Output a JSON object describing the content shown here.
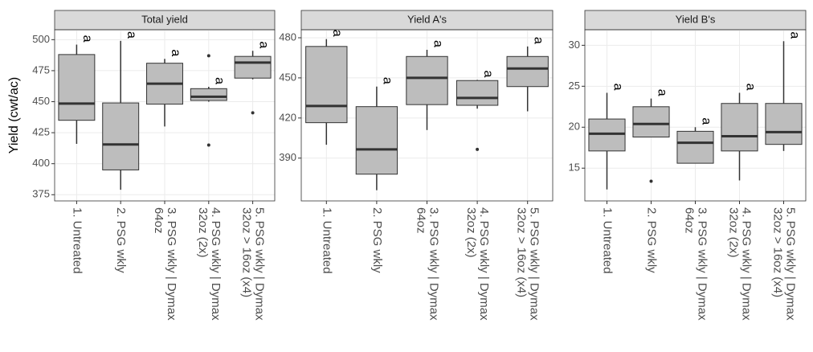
{
  "chart_data": [
    {
      "type": "box",
      "title": "Total yield",
      "ylabel": "Yield (cwt/ac)",
      "categories": [
        [
          "1. Untreated"
        ],
        [
          "2. PSG wkly"
        ],
        [
          "3. PSG wkly | Dymax",
          "64oz"
        ],
        [
          "4. PSG wkly | Dymax",
          "32oz (2x)"
        ],
        [
          "5. PSG wkly | Dymax",
          "32oz > 16oz (x4)"
        ]
      ],
      "boxes": [
        {
          "min": 416,
          "q1": 435,
          "median": 448.5,
          "q3": 488,
          "max": 496,
          "outliers": []
        },
        {
          "min": 379,
          "q1": 395,
          "median": 415.5,
          "q3": 449,
          "max": 499,
          "outliers": []
        },
        {
          "min": 430,
          "q1": 448,
          "median": 464.5,
          "q3": 481,
          "max": 484.5,
          "outliers": []
        },
        {
          "min": 450,
          "q1": 451,
          "median": 454,
          "q3": 460.5,
          "max": 462,
          "outliers": [
            487,
            415
          ]
        },
        {
          "min": 468,
          "q1": 469,
          "median": 481.5,
          "q3": 486.5,
          "max": 491,
          "outliers": [
            441
          ]
        }
      ],
      "letters": [
        "a",
        "a",
        "a",
        "a",
        "a"
      ],
      "ylim": [
        370,
        508
      ],
      "yticks": [
        375,
        400,
        425,
        450,
        475,
        500
      ],
      "grid": true,
      "color": "#bdbdbd"
    },
    {
      "type": "box",
      "title": "Yield A's",
      "categories": [
        [
          "1. Untreated"
        ],
        [
          "2. PSG wkly"
        ],
        [
          "3. PSG wkly | Dymax",
          "64oz"
        ],
        [
          "4. PSG wkly | Dymax",
          "32oz (2x)"
        ],
        [
          "5. PSG wkly | Dymax",
          "32oz > 16oz (x4)"
        ]
      ],
      "boxes": [
        {
          "min": 400,
          "q1": 416.5,
          "median": 429,
          "q3": 473.5,
          "max": 479,
          "outliers": []
        },
        {
          "min": 366,
          "q1": 378,
          "median": 396.5,
          "q3": 428.5,
          "max": 443.5,
          "outliers": []
        },
        {
          "min": 411,
          "q1": 430,
          "median": 450,
          "q3": 466,
          "max": 471,
          "outliers": []
        },
        {
          "min": 427,
          "q1": 429.5,
          "median": 435,
          "q3": 448,
          "max": 448.5,
          "outliers": [
            396.5
          ]
        },
        {
          "min": 425,
          "q1": 443.5,
          "median": 457,
          "q3": 466,
          "max": 473.5,
          "outliers": []
        }
      ],
      "letters": [
        "a",
        "a",
        "a",
        "a",
        "a"
      ],
      "ylim": [
        358,
        486
      ],
      "yticks": [
        390,
        420,
        450,
        480
      ],
      "grid": true,
      "color": "#bdbdbd"
    },
    {
      "type": "box",
      "title": "Yield B's",
      "categories": [
        [
          "1. Untreated"
        ],
        [
          "2. PSG wkly"
        ],
        [
          "3. PSG wkly | Dymax",
          "64oz"
        ],
        [
          "4. PSG wkly | Dymax",
          "32oz (2x)"
        ],
        [
          "5. PSG wkly | Dymax",
          "32oz > 16oz (x4)"
        ]
      ],
      "boxes": [
        {
          "min": 12.4,
          "q1": 17.1,
          "median": 19.2,
          "q3": 21,
          "max": 24.2,
          "outliers": []
        },
        {
          "min": 18.8,
          "q1": 18.8,
          "median": 20.4,
          "q3": 22.5,
          "max": 23.5,
          "outliers": [
            13.4
          ]
        },
        {
          "min": 15.6,
          "q1": 15.6,
          "median": 18.1,
          "q3": 19.5,
          "max": 20,
          "outliers": []
        },
        {
          "min": 13.5,
          "q1": 17.1,
          "median": 18.9,
          "q3": 22.9,
          "max": 24.2,
          "outliers": []
        },
        {
          "min": 17.1,
          "q1": 17.9,
          "median": 19.4,
          "q3": 22.9,
          "max": 30.5,
          "outliers": []
        }
      ],
      "letters": [
        "a",
        "a",
        "a",
        "a",
        "a"
      ],
      "ylim": [
        11,
        31.9
      ],
      "yticks": [
        15,
        20,
        25,
        30
      ],
      "grid": true,
      "color": "#bdbdbd"
    }
  ]
}
